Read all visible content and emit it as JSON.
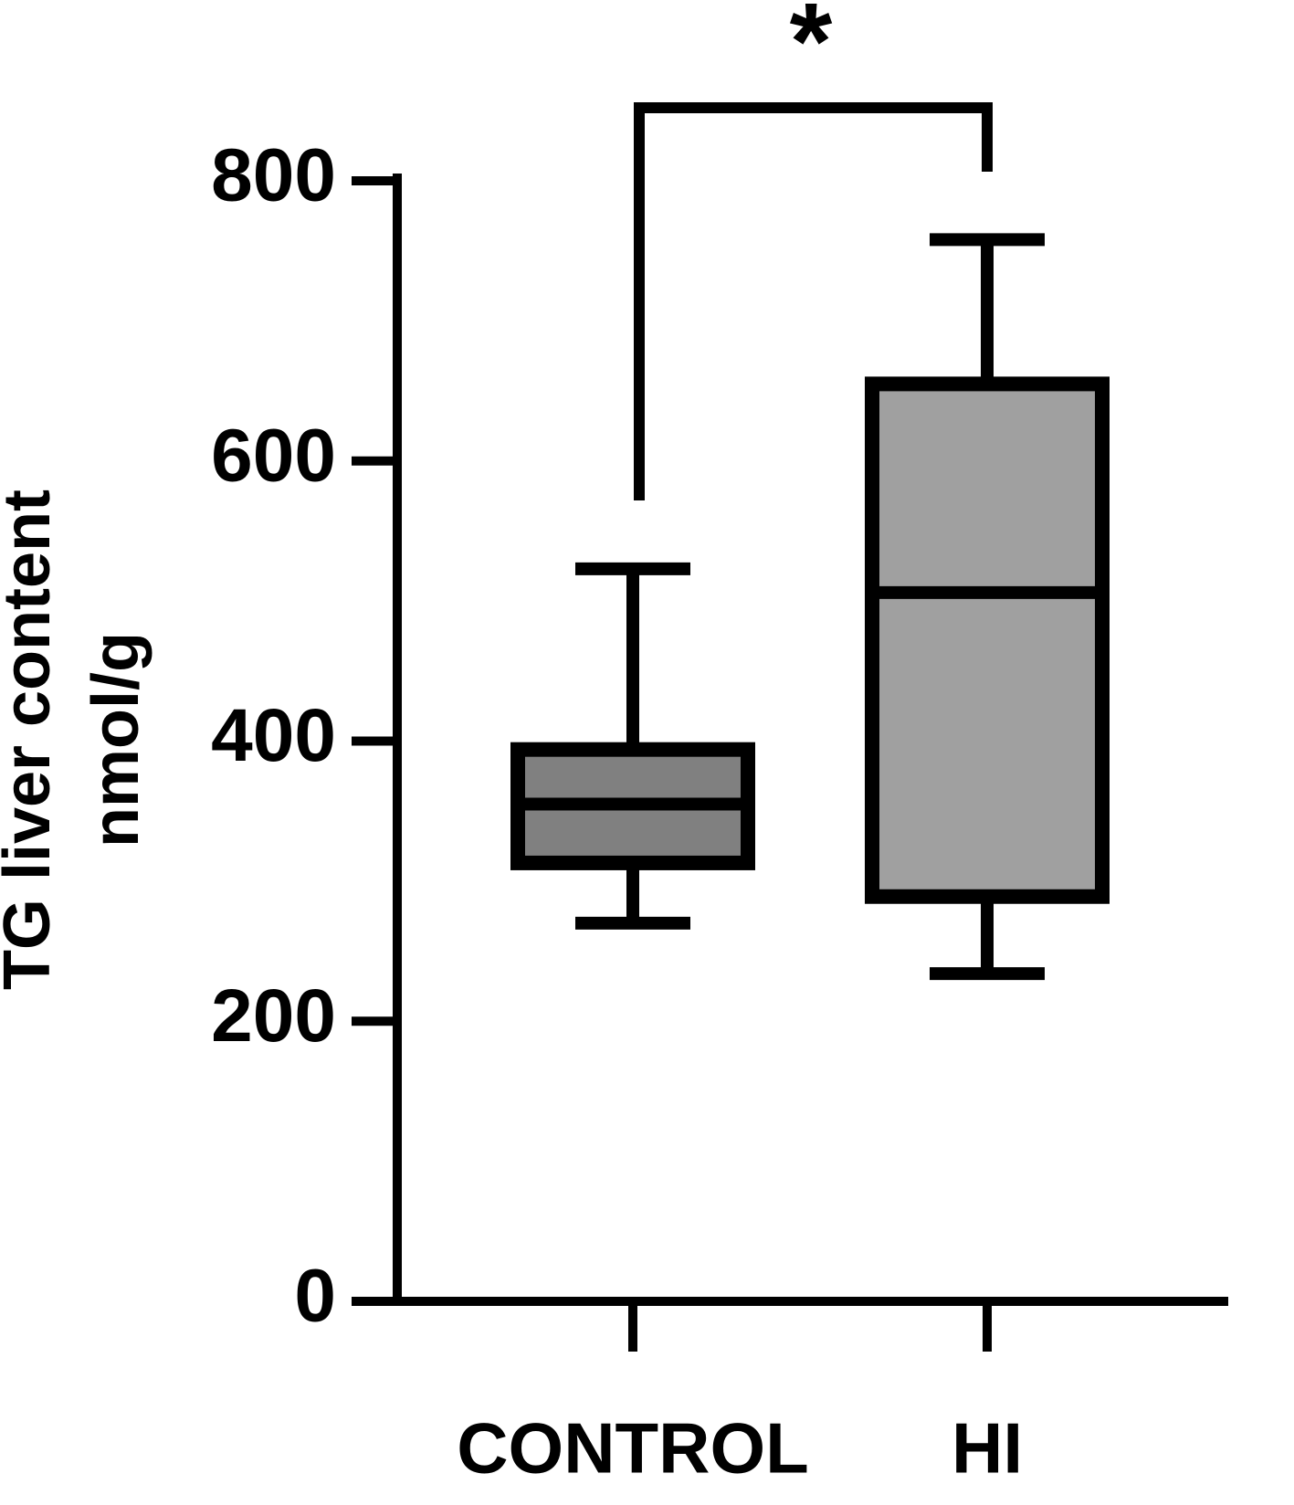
{
  "chart_data": {
    "type": "box",
    "ylabel": [
      "TG liver content",
      "nmol/g"
    ],
    "categories": [
      "CONTROL",
      "HI"
    ],
    "boxes": [
      {
        "whislo": 270,
        "q1": 313,
        "med": 355,
        "q3": 394,
        "whishi": 523,
        "color": "#808080"
      },
      {
        "whislo": 234,
        "q1": 289,
        "med": 506,
        "q3": 655,
        "whishi": 758,
        "color": "#a0a0a0"
      }
    ],
    "annotation": "*",
    "ylim": [
      0,
      800
    ],
    "yticks": [
      0,
      200,
      400,
      600,
      800
    ]
  }
}
